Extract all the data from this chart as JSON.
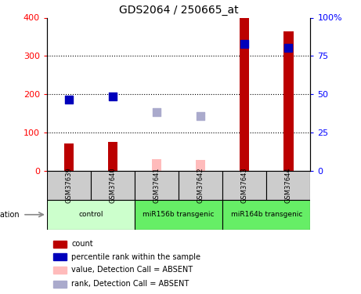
{
  "title": "GDS2064 / 250665_at",
  "samples": [
    "GSM37639",
    "GSM37640",
    "GSM37641",
    "GSM37642",
    "GSM37643",
    "GSM37644"
  ],
  "count_values": [
    70,
    75,
    30,
    28,
    400,
    365
  ],
  "count_absent": [
    false,
    false,
    true,
    true,
    false,
    false
  ],
  "rank_values": [
    185,
    193,
    152,
    143,
    332,
    322
  ],
  "rank_absent": [
    false,
    false,
    true,
    true,
    false,
    false
  ],
  "ylim_left": [
    0,
    400
  ],
  "left_ticks": [
    0,
    100,
    200,
    300,
    400
  ],
  "right_ticks": [
    0,
    25,
    50,
    75,
    100
  ],
  "count_color_present": "#bb0000",
  "count_color_absent": "#ffbbbb",
  "rank_color_present": "#0000bb",
  "rank_color_absent": "#aaaacc",
  "count_bar_width": 0.22,
  "rank_marker_size": 55,
  "group_defs": [
    {
      "label": "control",
      "start": 0,
      "end": 2,
      "color": "#ccffcc"
    },
    {
      "label": "miR156b transgenic",
      "start": 2,
      "end": 4,
      "color": "#66ee66"
    },
    {
      "label": "miR164b transgenic",
      "start": 4,
      "end": 6,
      "color": "#66ee66"
    }
  ],
  "sample_box_color": "#cccccc",
  "legend_items": [
    {
      "color": "#bb0000",
      "label": "count"
    },
    {
      "color": "#0000bb",
      "label": "percentile rank within the sample"
    },
    {
      "color": "#ffbbbb",
      "label": "value, Detection Call = ABSENT"
    },
    {
      "color": "#aaaacc",
      "label": "rank, Detection Call = ABSENT"
    }
  ]
}
